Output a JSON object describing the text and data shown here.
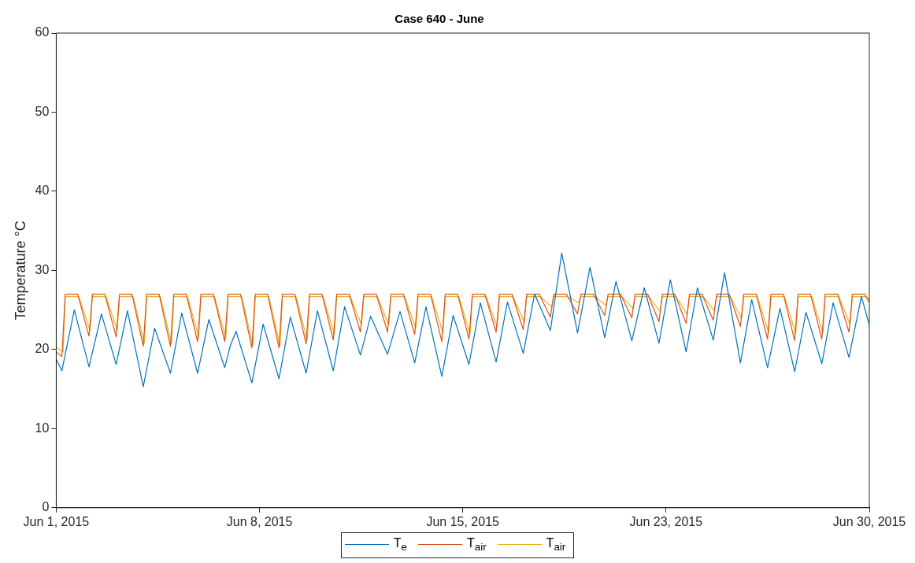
{
  "chart_data": {
    "type": "line",
    "title": "Case 640 - June",
    "ylabel": "Temperature °C",
    "xlim": [
      "2015-06-01T00:00",
      "2015-06-30T23:00"
    ],
    "xticks": [
      {
        "value": "2015-06-01T00:00",
        "label": "Jun 1, 2015"
      },
      {
        "value": "2015-06-08T11:45",
        "label": "Jun 8, 2015"
      },
      {
        "value": "2015-06-15T23:30",
        "label": "Jun 15, 2015"
      },
      {
        "value": "2015-06-23T11:15",
        "label": "Jun 23, 2015"
      },
      {
        "value": "2015-06-30T23:00",
        "label": "Jun 30, 2015"
      }
    ],
    "ylim": [
      0,
      60
    ],
    "yticks": [
      0,
      10,
      20,
      30,
      40,
      50,
      60
    ],
    "grid": false,
    "legend": "bottom",
    "marker": "none",
    "line_style": "solid",
    "series": [
      {
        "name": "T$_{e}$",
        "color": "#0072bd",
        "x": [
          "2015-06-01T00:00",
          "2015-06-01T05:00",
          "2015-06-01T16:00",
          "2015-06-02T05:00",
          "2015-06-02T16:00",
          "2015-06-03T05:00",
          "2015-06-03T15:00",
          "2015-06-04T05:00",
          "2015-06-04T15:00",
          "2015-06-05T05:00",
          "2015-06-05T15:00",
          "2015-06-06T05:00",
          "2015-06-06T15:00",
          "2015-06-07T05:00",
          "2015-06-07T10:00",
          "2015-06-07T15:00",
          "2015-06-08T05:00",
          "2015-06-08T15:00",
          "2015-06-09T05:00",
          "2015-06-09T15:00",
          "2015-06-10T05:00",
          "2015-06-10T15:00",
          "2015-06-11T05:00",
          "2015-06-11T15:00",
          "2015-06-12T05:00",
          "2015-06-12T14:00",
          "2015-06-13T05:00",
          "2015-06-13T16:00",
          "2015-06-14T05:00",
          "2015-06-14T15:00",
          "2015-06-15T05:00",
          "2015-06-15T15:00",
          "2015-06-16T05:00",
          "2015-06-16T15:00",
          "2015-06-17T05:00",
          "2015-06-17T15:00",
          "2015-06-18T05:00",
          "2015-06-18T15:00",
          "2015-06-18T23:00",
          "2015-06-19T05:00",
          "2015-06-19T15:00",
          "2015-06-20T05:00",
          "2015-06-20T16:00",
          "2015-06-21T05:00",
          "2015-06-21T15:00",
          "2015-06-22T05:00",
          "2015-06-22T16:00",
          "2015-06-23T05:00",
          "2015-06-23T15:00",
          "2015-06-24T05:00",
          "2015-06-24T15:00",
          "2015-06-25T05:00",
          "2015-06-25T15:00",
          "2015-06-26T05:00",
          "2015-06-26T15:00",
          "2015-06-27T05:00",
          "2015-06-27T16:00",
          "2015-06-28T05:00",
          "2015-06-28T15:00",
          "2015-06-29T05:00",
          "2015-06-29T15:00",
          "2015-06-30T05:00",
          "2015-06-30T16:00",
          "2015-06-30T23:00"
        ],
        "values": [
          18.8,
          17.3,
          25.0,
          17.8,
          24.5,
          18.1,
          24.9,
          15.3,
          22.7,
          17.0,
          24.6,
          17.0,
          23.8,
          17.7,
          20.5,
          22.3,
          15.8,
          23.2,
          16.3,
          24.1,
          17.0,
          24.9,
          17.3,
          25.4,
          19.3,
          24.2,
          19.4,
          24.8,
          18.3,
          25.4,
          16.6,
          24.3,
          18.1,
          25.9,
          18.4,
          26.0,
          19.5,
          27.0,
          24.4,
          22.4,
          32.2,
          22.1,
          30.4,
          21.5,
          28.6,
          21.1,
          27.8,
          20.8,
          28.8,
          19.7,
          27.8,
          21.2,
          29.7,
          18.3,
          26.3,
          17.7,
          25.2,
          17.2,
          24.7,
          18.2,
          25.9,
          19.0,
          26.7,
          23.1
        ]
      },
      {
        "name": "T$_{air}$",
        "color": "#d95319",
        "x": [
          "2015-06-01T00:00",
          "2015-06-01T05:00",
          "2015-06-01T08:00",
          "2015-06-01T19:00",
          "2015-06-02T05:00",
          "2015-06-02T08:00",
          "2015-06-02T19:00",
          "2015-06-03T05:00",
          "2015-06-03T08:00",
          "2015-06-03T19:00",
          "2015-06-04T05:00",
          "2015-06-04T08:00",
          "2015-06-04T19:00",
          "2015-06-05T05:00",
          "2015-06-05T08:00",
          "2015-06-05T19:00",
          "2015-06-06T05:00",
          "2015-06-06T08:00",
          "2015-06-06T19:00",
          "2015-06-07T05:00",
          "2015-06-07T08:00",
          "2015-06-07T19:00",
          "2015-06-08T05:00",
          "2015-06-08T08:00",
          "2015-06-08T19:00",
          "2015-06-09T05:00",
          "2015-06-09T08:00",
          "2015-06-09T19:00",
          "2015-06-10T05:00",
          "2015-06-10T08:00",
          "2015-06-10T19:00",
          "2015-06-11T05:00",
          "2015-06-11T08:00",
          "2015-06-11T19:00",
          "2015-06-12T05:00",
          "2015-06-12T08:00",
          "2015-06-12T19:00",
          "2015-06-13T05:00",
          "2015-06-13T08:00",
          "2015-06-13T19:00",
          "2015-06-14T05:00",
          "2015-06-14T08:00",
          "2015-06-14T19:00",
          "2015-06-15T05:00",
          "2015-06-15T08:00",
          "2015-06-15T19:00",
          "2015-06-16T05:00",
          "2015-06-16T08:00",
          "2015-06-16T19:00",
          "2015-06-17T05:00",
          "2015-06-17T08:00",
          "2015-06-17T19:00",
          "2015-06-18T05:00",
          "2015-06-18T08:00",
          "2015-06-18T19:00",
          "2015-06-19T05:00",
          "2015-06-19T08:00",
          "2015-06-19T19:00",
          "2015-06-20T05:00",
          "2015-06-20T08:00",
          "2015-06-20T19:00",
          "2015-06-21T05:00",
          "2015-06-21T08:00",
          "2015-06-21T19:00",
          "2015-06-22T05:00",
          "2015-06-22T08:00",
          "2015-06-22T19:00",
          "2015-06-23T05:00",
          "2015-06-23T08:00",
          "2015-06-23T19:00",
          "2015-06-24T05:00",
          "2015-06-24T08:00",
          "2015-06-24T19:00",
          "2015-06-25T05:00",
          "2015-06-25T08:00",
          "2015-06-25T19:00",
          "2015-06-26T05:00",
          "2015-06-26T08:00",
          "2015-06-26T19:00",
          "2015-06-27T05:00",
          "2015-06-27T08:00",
          "2015-06-27T19:00",
          "2015-06-28T05:00",
          "2015-06-28T08:00",
          "2015-06-28T19:00",
          "2015-06-29T05:00",
          "2015-06-29T08:00",
          "2015-06-29T19:00",
          "2015-06-30T05:00",
          "2015-06-30T08:00",
          "2015-06-30T19:00",
          "2015-06-30T23:00"
        ],
        "values": [
          19.7,
          19.1,
          27,
          27,
          21.7,
          27,
          27,
          21.6,
          27,
          27,
          20.4,
          27,
          27,
          20.4,
          27,
          27,
          21.0,
          27,
          27,
          21.0,
          27,
          27,
          20.2,
          27,
          27,
          20.2,
          27,
          27,
          20.7,
          27,
          27,
          21.2,
          27,
          27,
          22.2,
          27,
          27,
          22.2,
          27,
          27,
          21.9,
          27,
          27,
          21.0,
          27,
          27,
          21.3,
          27,
          27,
          22.2,
          27,
          27,
          22.5,
          27,
          27,
          24.1,
          27,
          27,
          24.5,
          27,
          27,
          24.3,
          27,
          27,
          24.0,
          27,
          27,
          23.5,
          27,
          27,
          23.3,
          27,
          27,
          23.7,
          27,
          27,
          22.9,
          27,
          27,
          21.3,
          27,
          27,
          21.1,
          27,
          27,
          21.3,
          27,
          27,
          22.2,
          27,
          27,
          25.9
        ]
      },
      {
        "name": "T$_{air}$",
        "color": "#edb120",
        "x": [
          "2015-06-01T00:00",
          "2015-06-01T06:00",
          "2015-06-01T08:00",
          "2015-06-01T20:00",
          "2015-06-02T06:00",
          "2015-06-02T08:00",
          "2015-06-02T20:00",
          "2015-06-03T06:00",
          "2015-06-03T08:00",
          "2015-06-03T20:00",
          "2015-06-04T06:00",
          "2015-06-04T08:00",
          "2015-06-04T20:00",
          "2015-06-05T06:00",
          "2015-06-05T08:00",
          "2015-06-05T20:00",
          "2015-06-06T06:00",
          "2015-06-06T08:00",
          "2015-06-06T20:00",
          "2015-06-07T06:00",
          "2015-06-07T08:00",
          "2015-06-07T20:00",
          "2015-06-08T06:00",
          "2015-06-08T08:00",
          "2015-06-08T20:00",
          "2015-06-09T06:00",
          "2015-06-09T08:00",
          "2015-06-09T20:00",
          "2015-06-10T06:00",
          "2015-06-10T08:00",
          "2015-06-10T20:00",
          "2015-06-11T06:00",
          "2015-06-11T08:00",
          "2015-06-11T20:00",
          "2015-06-12T06:00",
          "2015-06-12T08:00",
          "2015-06-12T20:00",
          "2015-06-13T06:00",
          "2015-06-13T08:00",
          "2015-06-13T20:00",
          "2015-06-14T06:00",
          "2015-06-14T08:00",
          "2015-06-14T20:00",
          "2015-06-15T06:00",
          "2015-06-15T08:00",
          "2015-06-15T20:00",
          "2015-06-16T06:00",
          "2015-06-16T08:00",
          "2015-06-16T20:00",
          "2015-06-17T06:00",
          "2015-06-17T08:00",
          "2015-06-17T20:00",
          "2015-06-18T06:00",
          "2015-06-18T08:00",
          "2015-06-18T20:00",
          "2015-06-19T06:00",
          "2015-06-19T08:00",
          "2015-06-19T20:00",
          "2015-06-20T06:00",
          "2015-06-20T08:00",
          "2015-06-20T20:00",
          "2015-06-21T06:00",
          "2015-06-21T08:00",
          "2015-06-21T20:00",
          "2015-06-22T06:00",
          "2015-06-22T08:00",
          "2015-06-22T20:00",
          "2015-06-23T06:00",
          "2015-06-23T08:00",
          "2015-06-23T20:00",
          "2015-06-24T06:00",
          "2015-06-24T08:00",
          "2015-06-24T20:00",
          "2015-06-25T06:00",
          "2015-06-25T08:00",
          "2015-06-25T20:00",
          "2015-06-26T06:00",
          "2015-06-26T08:00",
          "2015-06-26T20:00",
          "2015-06-27T06:00",
          "2015-06-27T08:00",
          "2015-06-27T20:00",
          "2015-06-28T06:00",
          "2015-06-28T08:00",
          "2015-06-28T20:00",
          "2015-06-29T06:00",
          "2015-06-29T08:00",
          "2015-06-29T20:00",
          "2015-06-30T06:00",
          "2015-06-30T08:00",
          "2015-06-30T20:00",
          "2015-06-30T23:00"
        ],
        "values": [
          20.3,
          19.7,
          26.7,
          26.7,
          22.4,
          26.7,
          26.7,
          22.4,
          26.7,
          26.7,
          20.8,
          26.7,
          26.7,
          20.8,
          26.7,
          26.7,
          21.6,
          26.7,
          26.7,
          21.4,
          26.7,
          26.7,
          20.5,
          26.7,
          26.7,
          20.5,
          26.7,
          26.7,
          21.2,
          26.7,
          26.7,
          21.9,
          26.7,
          26.7,
          23.1,
          26.7,
          26.7,
          23.1,
          26.7,
          26.7,
          22.7,
          26.7,
          26.7,
          22.1,
          26.7,
          26.7,
          21.9,
          26.7,
          26.7,
          22.9,
          26.7,
          26.7,
          23.4,
          26.7,
          26.7,
          25.4,
          26.7,
          26.7,
          25.9,
          26.7,
          26.7,
          25.6,
          26.7,
          26.7,
          25.2,
          26.7,
          26.7,
          24.8,
          26.7,
          26.7,
          24.4,
          26.7,
          26.7,
          24.9,
          26.7,
          26.7,
          23.9,
          26.7,
          26.7,
          22.1,
          26.7,
          26.7,
          22.0,
          26.7,
          26.7,
          22.1,
          26.7,
          26.7,
          23.2,
          26.7,
          26.7,
          26.3
        ]
      }
    ]
  }
}
